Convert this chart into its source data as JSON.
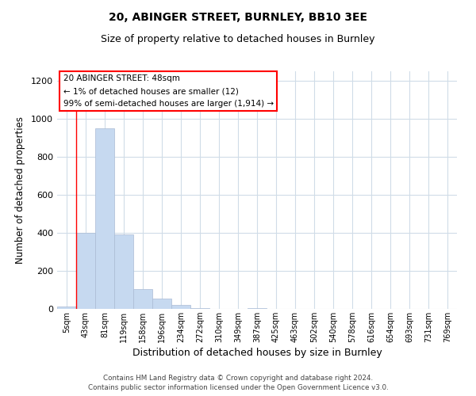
{
  "title": "20, ABINGER STREET, BURNLEY, BB10 3EE",
  "subtitle": "Size of property relative to detached houses in Burnley",
  "xlabel": "Distribution of detached houses by size in Burnley",
  "ylabel": "Number of detached properties",
  "bar_labels": [
    "5sqm",
    "43sqm",
    "81sqm",
    "119sqm",
    "158sqm",
    "196sqm",
    "234sqm",
    "272sqm",
    "310sqm",
    "349sqm",
    "387sqm",
    "425sqm",
    "463sqm",
    "502sqm",
    "540sqm",
    "578sqm",
    "616sqm",
    "654sqm",
    "693sqm",
    "731sqm",
    "769sqm"
  ],
  "bar_values": [
    12,
    400,
    950,
    390,
    105,
    55,
    22,
    5,
    0,
    0,
    5,
    0,
    0,
    0,
    0,
    0,
    0,
    0,
    0,
    0,
    0
  ],
  "bar_color": "#c6d9f0",
  "bar_edge_color": "#aabbd4",
  "ylim": [
    0,
    1250
  ],
  "yticks": [
    0,
    200,
    400,
    600,
    800,
    1000,
    1200
  ],
  "red_line_bar_index": 1,
  "annotation_box_text": "20 ABINGER STREET: 48sqm\n← 1% of detached houses are smaller (12)\n99% of semi-detached houses are larger (1,914) →",
  "footer_line1": "Contains HM Land Registry data © Crown copyright and database right 2024.",
  "footer_line2": "Contains public sector information licensed under the Open Government Licence v3.0.",
  "background_color": "#ffffff",
  "grid_color": "#d0dce8"
}
